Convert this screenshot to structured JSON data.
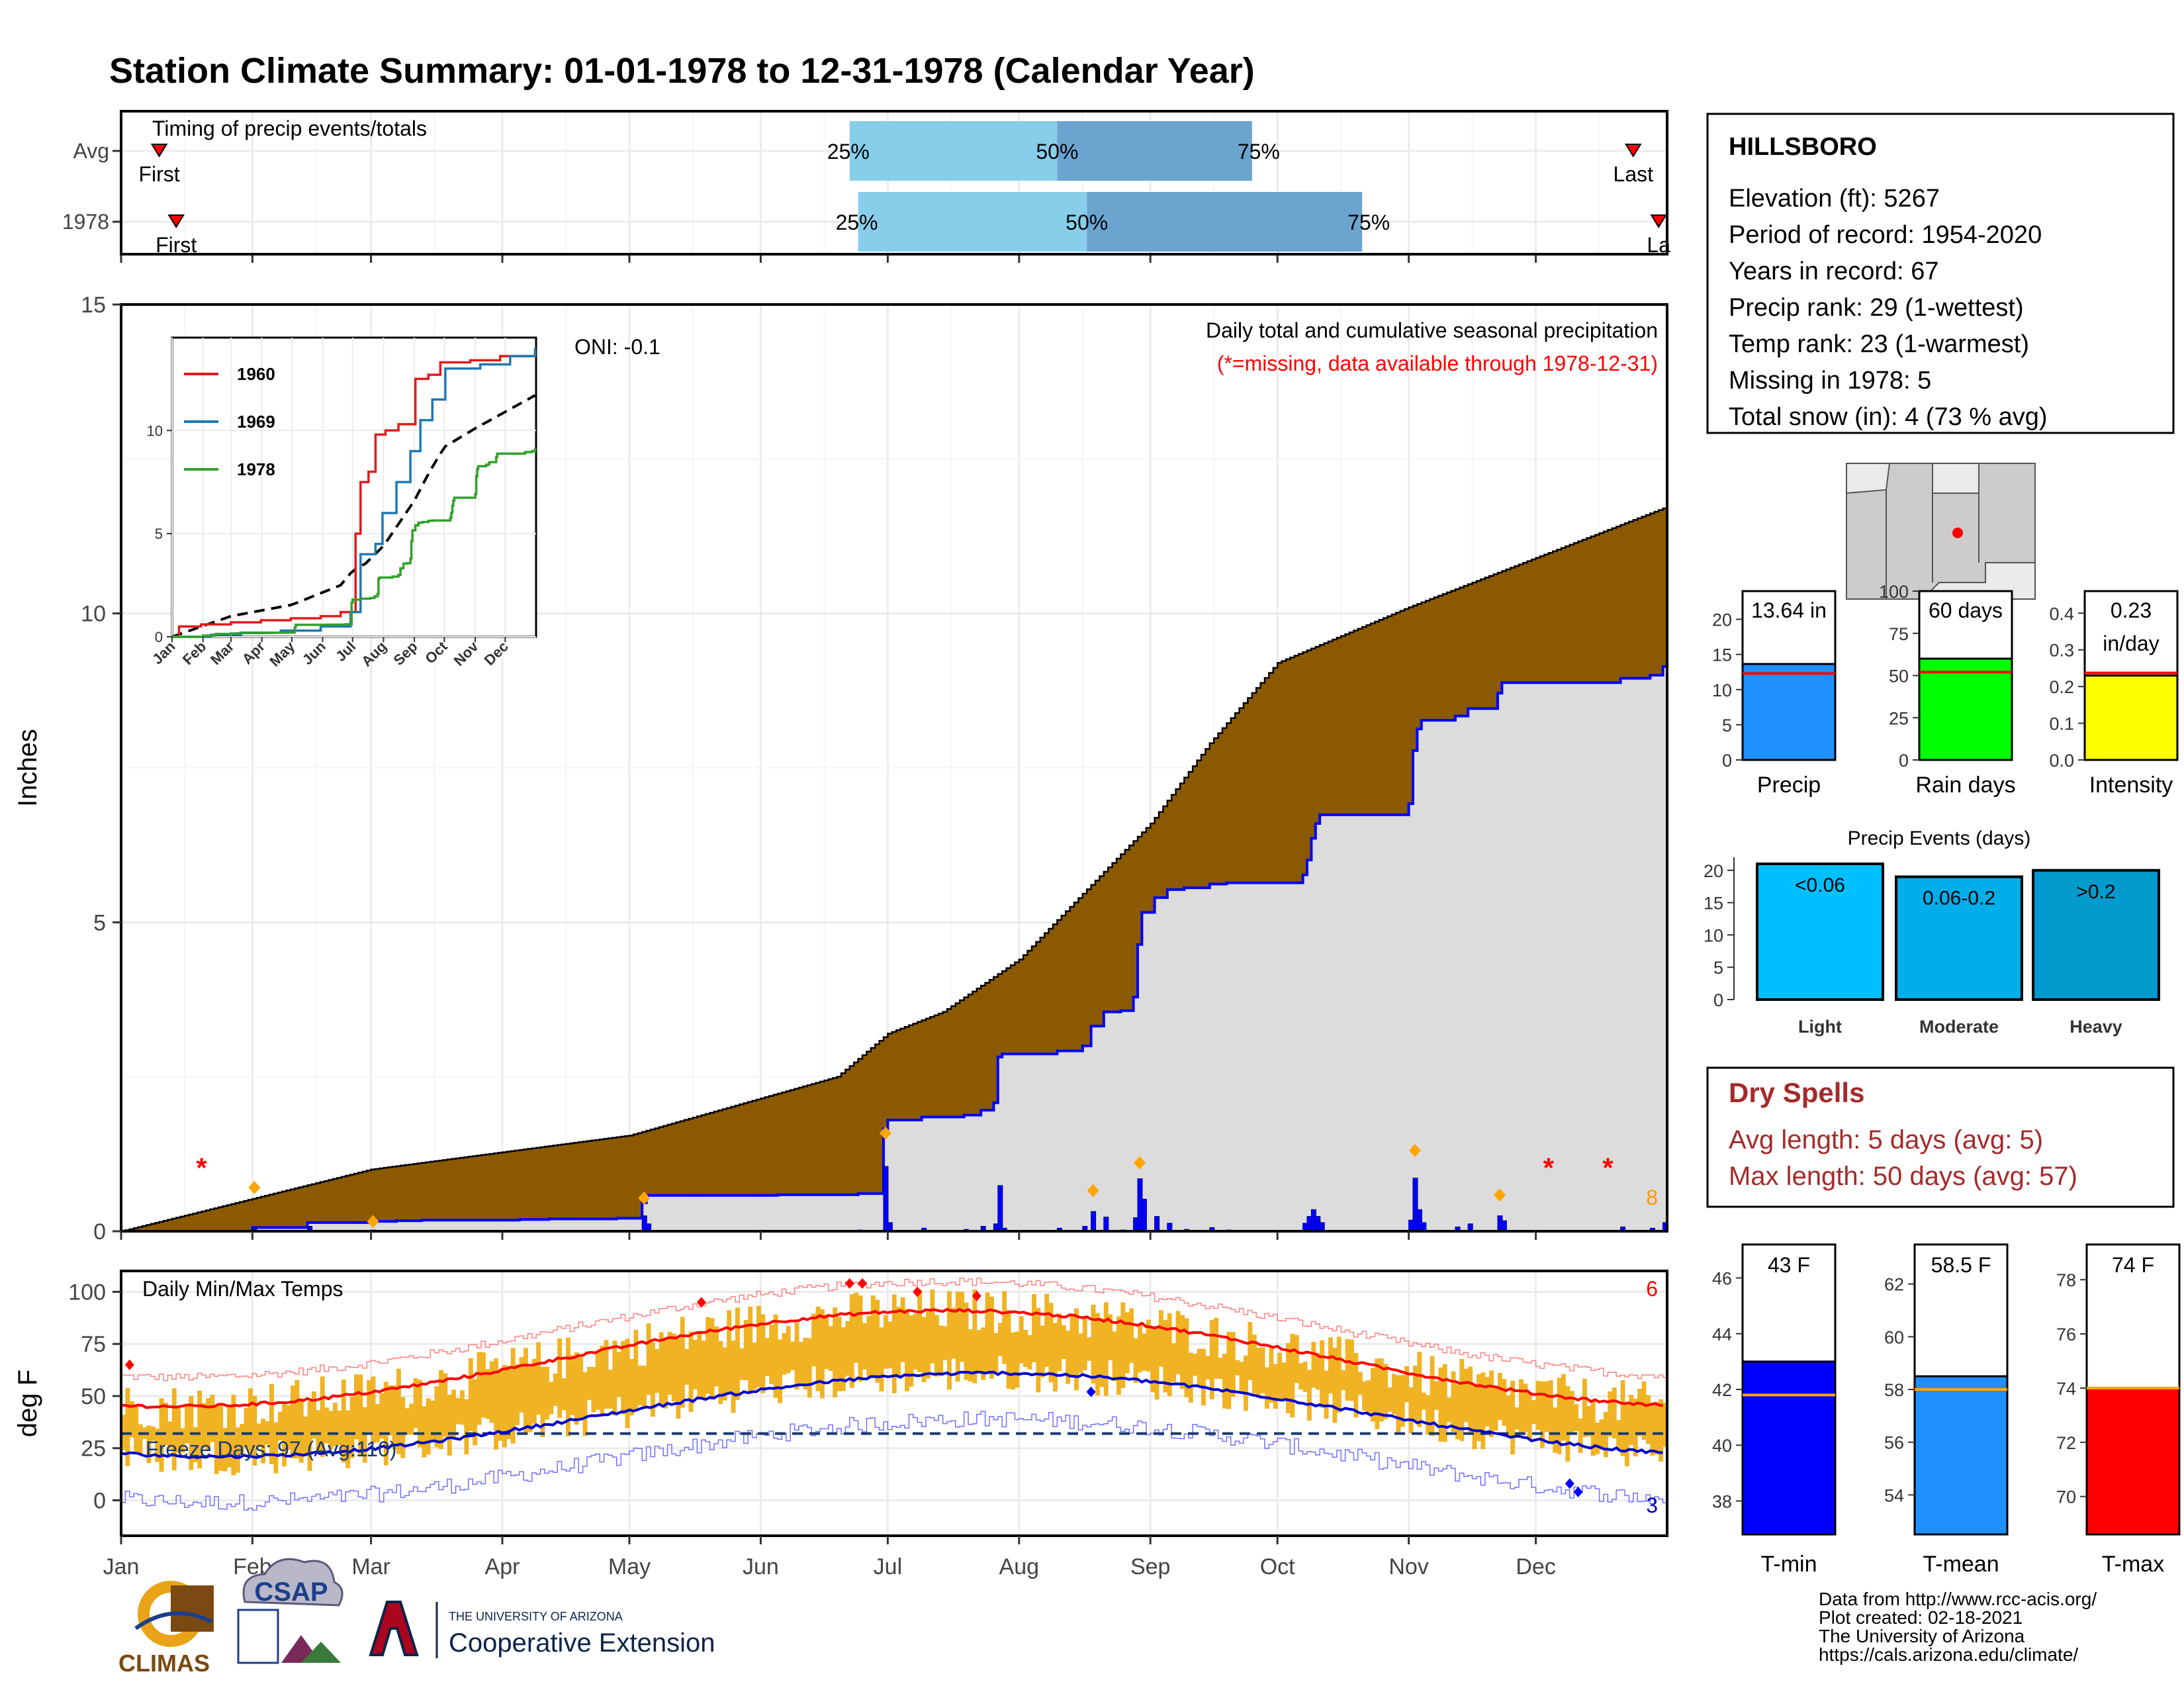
{
  "title": "Station Climate Summary: 01-01-1978 to 12-31-1978 (Calendar Year)",
  "months": [
    "Jan",
    "Feb",
    "Mar",
    "Apr",
    "May",
    "Jun",
    "Jul",
    "Aug",
    "Sep",
    "Oct",
    "Nov",
    "Dec"
  ],
  "timing": {
    "title": "Timing of precip events/totals",
    "rows": [
      {
        "label": "Avg",
        "first_label": "First",
        "last_label": "Last",
        "first_doy": 10,
        "last_doy": 358,
        "p25_doy": 173,
        "p50_doy": 222,
        "p75_doy": 268,
        "p25_label": "25%",
        "p50_label": "50%",
        "p75_label": "75%"
      },
      {
        "label": "1978",
        "first_label": "First",
        "last_label": "La",
        "first_doy": 14,
        "last_doy": 364,
        "p25_doy": 175,
        "p50_doy": 229,
        "p75_doy": 294,
        "p25_label": "25%",
        "p50_label": "50%",
        "p75_label": "75%"
      }
    ]
  },
  "precip_panel": {
    "ylabel": "Inches",
    "oni": "ONI: -0.1",
    "subtitle": "Daily total and cumulative seasonal precipitation",
    "missing_note": "(*=missing, data available through 1978-12-31)",
    "corner_count": "8",
    "ylim": [
      0,
      15
    ],
    "yticks": [
      0,
      5,
      10,
      15
    ]
  },
  "temp_panel": {
    "title": "Daily Min/Max Temps",
    "ylabel": "deg F",
    "freeze": "Freeze Days: 97 (Avg:110)",
    "max_count": "6",
    "min_count": "3",
    "ylim": [
      -17,
      110
    ],
    "yticks": [
      0,
      25,
      50,
      75,
      100
    ],
    "freeze_line": 32
  },
  "inset": {
    "legend": [
      {
        "name": "1960",
        "color": "#e31a1c"
      },
      {
        "name": "1969",
        "color": "#1f78b4"
      },
      {
        "name": "1978",
        "color": "#33a02c"
      }
    ],
    "yticks": [
      0,
      5,
      10
    ],
    "ylim": [
      0,
      14.5
    ]
  },
  "station": {
    "name": "HILLSBORO",
    "lines": [
      "Elevation (ft): 5267",
      "Period of record: 1954-2020",
      "Years in record: 67",
      "Precip rank: 29 (1-wettest)",
      "Temp rank: 23 (1-warmest)",
      "Missing in 1978: 5",
      "Total snow (in): 4 (73 % avg)"
    ]
  },
  "summary_bars": [
    {
      "label": "Precip",
      "value": 13.64,
      "text": "13.64 in",
      "avg": 12.3,
      "ymax": 24,
      "yticks": [
        0,
        5,
        10,
        15,
        20
      ],
      "color": "#1e90ff"
    },
    {
      "label": "Rain days",
      "value": 60,
      "text": "60 days",
      "avg": 52,
      "ymax": 100,
      "yticks": [
        0,
        25,
        50,
        75,
        100
      ],
      "color": "#00ff00"
    },
    {
      "label": "Intensity",
      "value": 0.23,
      "text": "0.23",
      "text2": "in/day",
      "avg": 0.237,
      "ymax": 0.46,
      "yticks": [
        0.0,
        0.1,
        0.2,
        0.3,
        0.4
      ],
      "color": "#ffff00"
    }
  ],
  "events": {
    "title": "Precip Events (days)",
    "ymax": 21,
    "yticks": [
      0,
      5,
      10,
      15,
      20
    ],
    "bars": [
      {
        "category": "Light",
        "value": 21,
        "text": "<0.06",
        "color": "#00bfff"
      },
      {
        "category": "Moderate",
        "value": 19,
        "text": "0.06-0.2",
        "color": "#00aeea"
      },
      {
        "category": "Heavy",
        "value": 20,
        "text": ">0.2",
        "color": "#009acd"
      }
    ]
  },
  "dry": {
    "title": "Dry Spells",
    "avg": "Avg length: 5 days (avg: 5)",
    "max": "Max length: 50 days (avg: 57)"
  },
  "temp_bars": [
    {
      "label": "T-min",
      "value": 43,
      "text": "43 F",
      "avg": 41.8,
      "ylim": [
        36.8,
        47.2
      ],
      "yticks": [
        38,
        40,
        42,
        44,
        46
      ],
      "color": "#0000ff"
    },
    {
      "label": "T-mean",
      "value": 58.5,
      "text": "58.5 F",
      "avg": 58,
      "ylim": [
        52.5,
        63.5
      ],
      "yticks": [
        54,
        56,
        58,
        60,
        62
      ],
      "color": "#1e90ff"
    },
    {
      "label": "T-max",
      "value": 74,
      "text": "74 F",
      "avg": 74,
      "ylim": [
        68.6,
        79.3
      ],
      "yticks": [
        70,
        72,
        74,
        76,
        78
      ],
      "color": "#ff0000"
    }
  ],
  "credits": [
    "Data from http://www.rcc-acis.org/",
    "Plot created: 02-18-2021",
    "The University of Arizona",
    "https://cals.arizona.edu/climate/"
  ],
  "logos": {
    "climas": "CLIMAS",
    "csap": "CSAP",
    "ua_small": "THE UNIVERSITY OF ARIZONA",
    "ua_big": "Cooperative Extension"
  },
  "colors": {
    "title": "#000080",
    "cum_line": "#0000ff",
    "above_avg": "#008000",
    "below_avg": "#8b5a00",
    "avg_fill": "#dcdcdc",
    "temp_bar": "#f0b323",
    "max_avg": "#ff0000",
    "min_avg": "#0000cd",
    "missing": "#ff0000",
    "timing_light": "#87ceeb",
    "timing_dark": "#6ba4cf",
    "dry_text": "#a52a2a"
  }
}
